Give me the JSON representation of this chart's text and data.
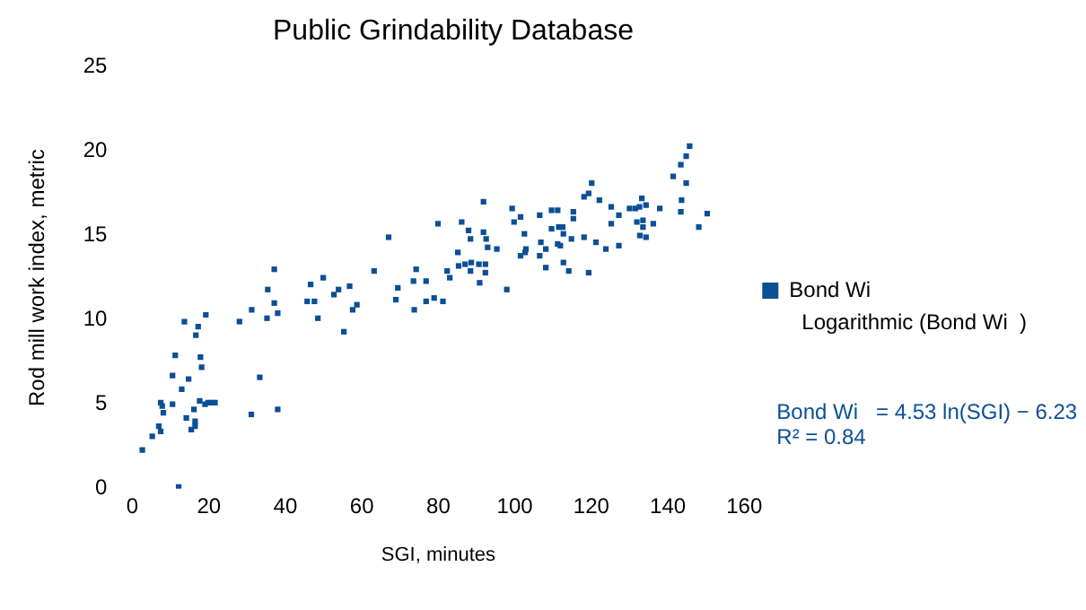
{
  "chart_data": {
    "type": "scatter",
    "title": "Public Grindability Database",
    "xlabel": "SGI, minutes",
    "ylabel": "Rod mill work index, metric",
    "xlim": [
      0,
      160
    ],
    "xticks": [
      0,
      20,
      40,
      60,
      80,
      100,
      120,
      140,
      160
    ],
    "ylim": [
      0,
      25
    ],
    "yticks": [
      0,
      5,
      10,
      15,
      20,
      25
    ],
    "grid": false,
    "legend": "right",
    "marker": "square",
    "annotations": [
      "Logarithmic (Bond Wi  )",
      "Bond Wi   = 4.53 ln(SGI) − 6.23",
      "R² = 0.84"
    ],
    "series": [
      {
        "name": "Bond Wi",
        "color": "#0b4f96",
        "x": [
          2.6,
          5.2,
          6.9,
          7.4,
          7.4,
          8.1,
          7.8,
          10.5,
          10.5,
          11.2,
          12.9,
          13.6,
          14.1,
          14.7,
          15.4,
          16.1,
          16.4,
          16.4,
          16.6,
          17.2,
          17.6,
          17.8,
          18.1,
          19.0,
          19.2,
          19.8,
          20.7,
          21.6,
          12.1,
          28.0,
          31.1,
          31.2,
          33.3,
          35.2,
          35.4,
          37.1,
          37.1,
          38.0,
          38.0,
          45.7,
          46.6,
          47.6,
          48.5,
          49.9,
          52.7,
          53.9,
          56.8,
          57.6,
          58.7,
          55.3,
          63.2,
          67.0,
          68.9,
          69.4,
          73.7,
          73.5,
          74.2,
          76.8,
          76.8,
          78.9,
          79.9,
          81.2,
          82.3,
          83.0,
          85.1,
          85.3,
          86.1,
          87.0,
          87.9,
          88.4,
          88.4,
          88.6,
          90.6,
          90.8,
          91.8,
          91.8,
          92.3,
          92.3,
          92.5,
          92.9,
          95.3,
          97.9,
          99.3,
          99.8,
          101.5,
          101.5,
          102.5,
          102.9,
          102.7,
          106.5,
          106.5,
          106.8,
          108.1,
          108.1,
          109.6,
          109.6,
          111.2,
          111.2,
          111.5,
          111.9,
          112.5,
          112.7,
          112.7,
          114.1,
          114.8,
          115.3,
          115.3,
          118.1,
          118.1,
          119.3,
          119.3,
          120.1,
          121.2,
          122.1,
          123.8,
          125.2,
          125.2,
          127.2,
          127.2,
          130.0,
          131.5,
          131.9,
          132.6,
          133.2,
          133.5,
          133.5,
          132.7,
          134.3,
          134.3,
          136.2,
          137.9,
          141.4,
          143.4,
          143.6,
          143.4,
          144.8,
          144.8,
          145.7,
          148.1,
          150.3
        ],
        "values": [
          2.3,
          3.1,
          3.7,
          3.4,
          5.1,
          4.5,
          4.9,
          5.0,
          6.7,
          7.9,
          5.9,
          9.9,
          4.2,
          6.5,
          3.5,
          4.7,
          4.0,
          3.7,
          9.1,
          9.6,
          5.2,
          7.8,
          7.2,
          5.0,
          10.3,
          5.1,
          5.1,
          5.1,
          0.1,
          9.9,
          4.4,
          10.6,
          6.6,
          10.1,
          11.8,
          13.0,
          11.0,
          10.4,
          4.7,
          11.1,
          12.1,
          11.1,
          10.1,
          12.5,
          11.5,
          11.8,
          12.0,
          10.6,
          10.9,
          9.3,
          12.9,
          14.9,
          11.2,
          11.9,
          10.6,
          12.3,
          13.0,
          12.3,
          11.1,
          11.3,
          15.7,
          11.1,
          12.9,
          12.5,
          14.0,
          13.2,
          15.8,
          13.3,
          15.3,
          14.8,
          12.9,
          13.4,
          13.3,
          12.2,
          17.0,
          15.2,
          13.3,
          12.8,
          14.8,
          14.3,
          14.2,
          11.8,
          16.6,
          15.8,
          16.1,
          13.8,
          15.1,
          14.2,
          14.0,
          16.2,
          13.8,
          14.6,
          14.2,
          13.1,
          16.5,
          15.4,
          16.5,
          14.5,
          15.5,
          14.4,
          15.5,
          15.1,
          13.4,
          12.9,
          14.8,
          16.4,
          16.0,
          14.9,
          17.3,
          17.5,
          12.8,
          18.1,
          14.6,
          17.1,
          14.2,
          16.7,
          15.7,
          16.2,
          14.4,
          16.6,
          16.6,
          15.8,
          16.7,
          17.2,
          15.9,
          15.5,
          15.0,
          16.8,
          14.9,
          15.7,
          16.6,
          18.5,
          19.2,
          17.1,
          16.4,
          19.7,
          18.1,
          20.3,
          15.5,
          16.3
        ]
      }
    ]
  }
}
